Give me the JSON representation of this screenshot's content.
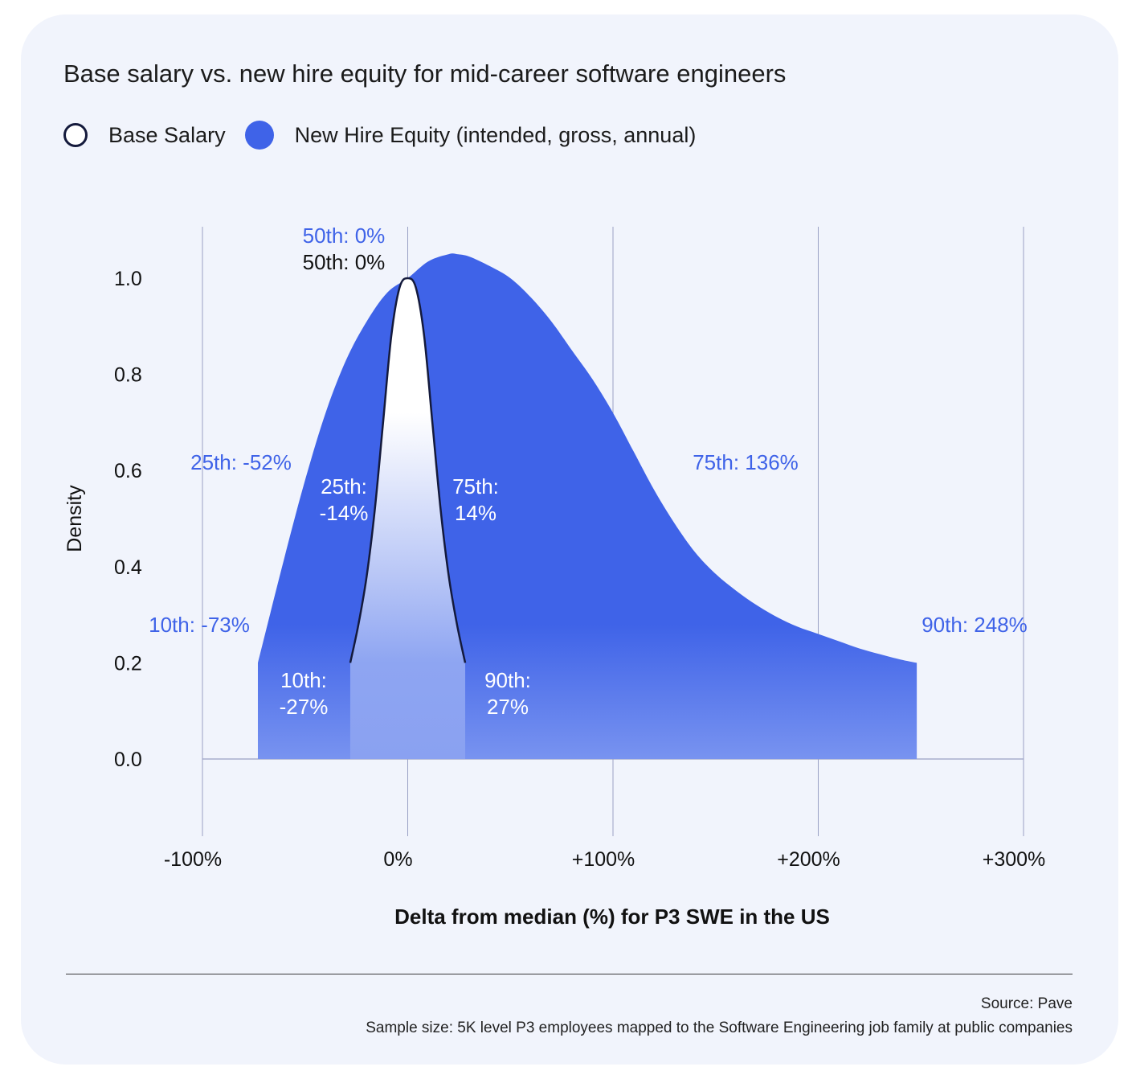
{
  "card": {
    "background": "#f1f4fc"
  },
  "title": "Base salary vs. new hire equity for mid-career software engineers",
  "legend": [
    {
      "label": "Base Salary",
      "style": "outline",
      "color": "#141a3c"
    },
    {
      "label": "New Hire Equity (intended, gross, annual)",
      "style": "filled",
      "color": "#3f63e8"
    }
  ],
  "chart_data": {
    "type": "area",
    "xlabel": "Delta from median (%) for P3 SWE in the US",
    "ylabel": "Density",
    "xlim": [
      -100,
      300
    ],
    "ylim": [
      -0.16,
      1.1
    ],
    "x_ticks": [
      -100,
      0,
      100,
      200,
      300
    ],
    "x_tick_labels": [
      "-100%",
      "0%",
      "+100%",
      "+200%",
      "+300%"
    ],
    "y_ticks": [
      0.0,
      0.2,
      0.4,
      0.6,
      0.8,
      1.0
    ],
    "y_tick_labels": [
      "0.0",
      "0.2",
      "0.4",
      "0.6",
      "0.8",
      "1.0"
    ],
    "grid": {
      "vertical": true,
      "horizontal": false
    },
    "series": [
      {
        "name": "New Hire Equity (intended, gross, annual)",
        "color": "#3f63e8",
        "x": [
          -73,
          -60,
          -50,
          -40,
          -30,
          -20,
          -10,
          0,
          10,
          20,
          24,
          30,
          40,
          50,
          60,
          70,
          80,
          90,
          100,
          110,
          120,
          130,
          140,
          150,
          160,
          170,
          180,
          190,
          200,
          210,
          220,
          230,
          240,
          248
        ],
        "y": [
          0.2,
          0.42,
          0.58,
          0.72,
          0.83,
          0.91,
          0.97,
          1.0,
          1.035,
          1.05,
          1.05,
          1.045,
          1.025,
          1.0,
          0.96,
          0.91,
          0.85,
          0.79,
          0.72,
          0.64,
          0.56,
          0.49,
          0.43,
          0.385,
          0.35,
          0.32,
          0.295,
          0.275,
          0.26,
          0.245,
          0.23,
          0.218,
          0.207,
          0.2
        ]
      },
      {
        "name": "Base Salary",
        "color": "#141a3c",
        "x": [
          -28,
          -24,
          -20,
          -16,
          -12,
          -8,
          -4,
          0,
          4,
          8,
          12,
          16,
          20,
          24,
          28
        ],
        "y": [
          0.2,
          0.28,
          0.38,
          0.52,
          0.7,
          0.88,
          0.98,
          1.0,
          0.98,
          0.88,
          0.7,
          0.52,
          0.38,
          0.28,
          0.2
        ]
      }
    ],
    "annotations": [
      {
        "series": "New Hire Equity (intended, gross, annual)",
        "lines": [
          "50th: 0%"
        ]
      },
      {
        "series": "Base Salary",
        "lines": [
          "50th: 0%"
        ]
      },
      {
        "series": "New Hire Equity (intended, gross, annual)",
        "lines": [
          "25th: -52%"
        ]
      },
      {
        "series": "New Hire Equity (intended, gross, annual)",
        "lines": [
          "75th: 136%"
        ]
      },
      {
        "series": "New Hire Equity (intended, gross, annual)",
        "lines": [
          "10th: -73%"
        ]
      },
      {
        "series": "New Hire Equity (intended, gross, annual)",
        "lines": [
          "90th: 248%"
        ]
      },
      {
        "series": "Base Salary",
        "lines": [
          "25th:",
          "-14%"
        ]
      },
      {
        "series": "Base Salary",
        "lines": [
          "75th:",
          "14%"
        ]
      },
      {
        "series": "Base Salary",
        "lines": [
          "10th:",
          "-27%"
        ]
      },
      {
        "series": "Base Salary",
        "lines": [
          "90th:",
          "27%"
        ]
      }
    ]
  },
  "footer": {
    "source": "Source: Pave",
    "sample": "Sample size: 5K level P3 employees mapped to the Software Engineering job family at public companies"
  }
}
